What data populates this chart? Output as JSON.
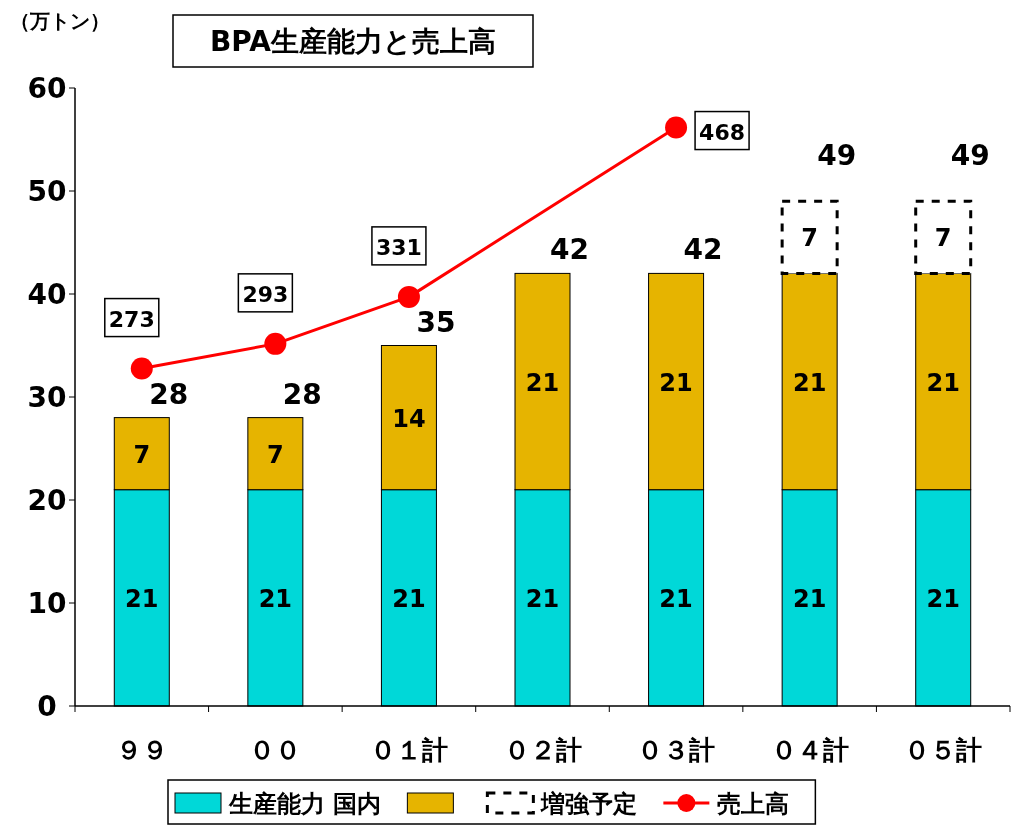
{
  "chart_data": {
    "type": "bar",
    "title": "BPA生産能力と売上高",
    "ylabel": "（万トン）",
    "categories": [
      "９９",
      "００",
      "０１計",
      "０２計",
      "０３計",
      "０４計",
      "０５計"
    ],
    "stacked": true,
    "ylim": [
      0,
      60
    ],
    "yticks": [
      0,
      10,
      20,
      30,
      40,
      50,
      60
    ],
    "y2lim": [
      0,
      500
    ],
    "grid": false,
    "legend": "bottom",
    "data_labels": true,
    "totals": [
      "28",
      "28",
      "35",
      "42",
      "42",
      "49",
      "49"
    ],
    "series": [
      {
        "name": "生産能力 国内",
        "color": "#00d8d8",
        "values": [
          21,
          21,
          21,
          21,
          21,
          21,
          21
        ]
      },
      {
        "color": "#e6b400",
        "values": [
          7,
          7,
          14,
          21,
          21,
          21,
          21
        ]
      },
      {
        "name": "増強予定",
        "color": "#ffffff",
        "line_style": "dashed",
        "values": [
          null,
          null,
          null,
          null,
          null,
          7,
          7
        ]
      },
      {
        "name": "売上高",
        "type": "line",
        "axis": "y2",
        "color": "#ff0000",
        "marker": "circle",
        "x": [
          "９９",
          "００",
          "０１計",
          "０３計"
        ],
        "values": [
          273,
          293,
          331,
          468
        ]
      }
    ]
  }
}
